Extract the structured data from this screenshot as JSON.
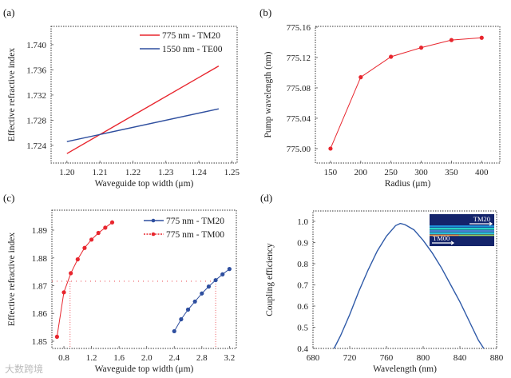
{
  "watermark": "大数跨境",
  "colors": {
    "red": "#e8262e",
    "blue": "#2f4f9f",
    "frame": "#333333"
  },
  "chart_data": [
    {
      "panel": "(a)",
      "type": "line",
      "xlabel": "Waveguide top width (μm)",
      "ylabel": "Effective refractive index",
      "xlim": [
        1.1952,
        1.2516
      ],
      "ylim": [
        1.7212,
        1.7429
      ],
      "xticks": [
        1.2,
        1.21,
        1.22,
        1.23,
        1.24,
        1.25
      ],
      "xtick_labels": [
        "1.20",
        "1.21",
        "1.22",
        "1.23",
        "1.24",
        "1.25"
      ],
      "yticks": [
        1.724,
        1.728,
        1.732,
        1.736,
        1.74
      ],
      "ytick_labels": [
        "1.724",
        "1.728",
        "1.732",
        "1.736",
        "1.740"
      ],
      "legend": "top-right",
      "series": [
        {
          "name": "775 nm - TM20",
          "color": "#e8262e",
          "marker": false,
          "x": [
            1.2,
            1.246
          ],
          "y": [
            1.7227,
            1.7366
          ]
        },
        {
          "name": "1550 nm - TE00",
          "color": "#2f4f9f",
          "marker": false,
          "x": [
            1.2,
            1.246
          ],
          "y": [
            1.7246,
            1.7298
          ]
        }
      ]
    },
    {
      "panel": "(b)",
      "type": "line",
      "xlabel": "Radius (μm)",
      "ylabel": "Pump wavelength (nm)",
      "xlim": [
        125,
        430
      ],
      "ylim": [
        774.981,
        775.161
      ],
      "xticks": [
        150,
        200,
        250,
        300,
        350,
        400
      ],
      "xtick_labels": [
        "150",
        "200",
        "250",
        "300",
        "350",
        "400"
      ],
      "yticks": [
        775.0,
        775.04,
        775.08,
        775.12,
        775.16
      ],
      "ytick_labels": [
        "775.00",
        "775.04",
        "775.08",
        "775.12",
        "775.16"
      ],
      "series": [
        {
          "name": "Pump wavelength",
          "color": "#e8262e",
          "marker": true,
          "x": [
            150,
            200,
            250,
            300,
            350,
            400
          ],
          "y": [
            775.0,
            775.094,
            775.121,
            775.133,
            775.143,
            775.146
          ]
        }
      ]
    },
    {
      "panel": "(c)",
      "type": "line",
      "xlabel": "Waveguide top width (μm)",
      "ylabel": "Effective refractive index",
      "xlim": [
        0.626,
        3.3
      ],
      "ylim": [
        1.8474,
        1.8972
      ],
      "xticks": [
        0.8,
        1.2,
        1.6,
        2.0,
        2.4,
        2.8,
        3.2
      ],
      "xtick_labels": [
        "0.8",
        "1.2",
        "1.6",
        "2.0",
        "2.4",
        "2.8",
        "3.2"
      ],
      "yticks": [
        1.85,
        1.86,
        1.87,
        1.88,
        1.89
      ],
      "ytick_labels": [
        "1.85",
        "1.86",
        "1.87",
        "1.88",
        "1.89"
      ],
      "legend": "top-right",
      "series": [
        {
          "name": "775 nm - TM20",
          "color": "#2f4f9f",
          "marker": true,
          "x": [
            2.4,
            2.5,
            2.6,
            2.7,
            2.8,
            2.9,
            3.0,
            3.1,
            3.2
          ],
          "y": [
            1.8536,
            1.8579,
            1.8614,
            1.8643,
            1.8672,
            1.8697,
            1.872,
            1.8741,
            1.876
          ]
        },
        {
          "name": "775 nm - TM00",
          "color": "#e8262e",
          "marker": true,
          "x": [
            0.7,
            0.8,
            0.9,
            1.0,
            1.1,
            1.2,
            1.3,
            1.4,
            1.5
          ],
          "y": [
            1.8516,
            1.8676,
            1.8745,
            1.8795,
            1.8836,
            1.8866,
            1.889,
            1.8909,
            1.8928
          ]
        }
      ],
      "guides": {
        "y": 1.8716,
        "x": [
          0.89,
          3.0
        ]
      }
    },
    {
      "panel": "(d)",
      "type": "line",
      "xlabel": "Wavelength (nm)",
      "ylabel": "Coupling efficiency",
      "xlim": [
        680,
        880
      ],
      "ylim": [
        0.4,
        1.049
      ],
      "xticks": [
        680,
        720,
        760,
        800,
        840,
        880
      ],
      "xtick_labels": [
        "680",
        "720",
        "760",
        "800",
        "840",
        "880"
      ],
      "yticks": [
        0.4,
        0.5,
        0.6,
        0.7,
        0.8,
        0.9,
        1.0
      ],
      "ytick_labels": [
        "0.4",
        "0.5",
        "0.6",
        "0.7",
        "0.8",
        "0.9",
        "1.0"
      ],
      "series": [
        {
          "name": "Coupling efficiency",
          "color": "#2f5aa8",
          "marker": false,
          "x": [
            703,
            710,
            720,
            730,
            740,
            750,
            760,
            770,
            775,
            780,
            790,
            800,
            810,
            820,
            830,
            840,
            850,
            860,
            866
          ],
          "y": [
            0.4,
            0.46,
            0.56,
            0.67,
            0.77,
            0.86,
            0.93,
            0.98,
            0.99,
            0.985,
            0.96,
            0.91,
            0.85,
            0.78,
            0.7,
            0.62,
            0.53,
            0.44,
            0.4
          ]
        }
      ],
      "inset": {
        "top_label": "TM20",
        "bottom_label": "TM00"
      }
    }
  ]
}
